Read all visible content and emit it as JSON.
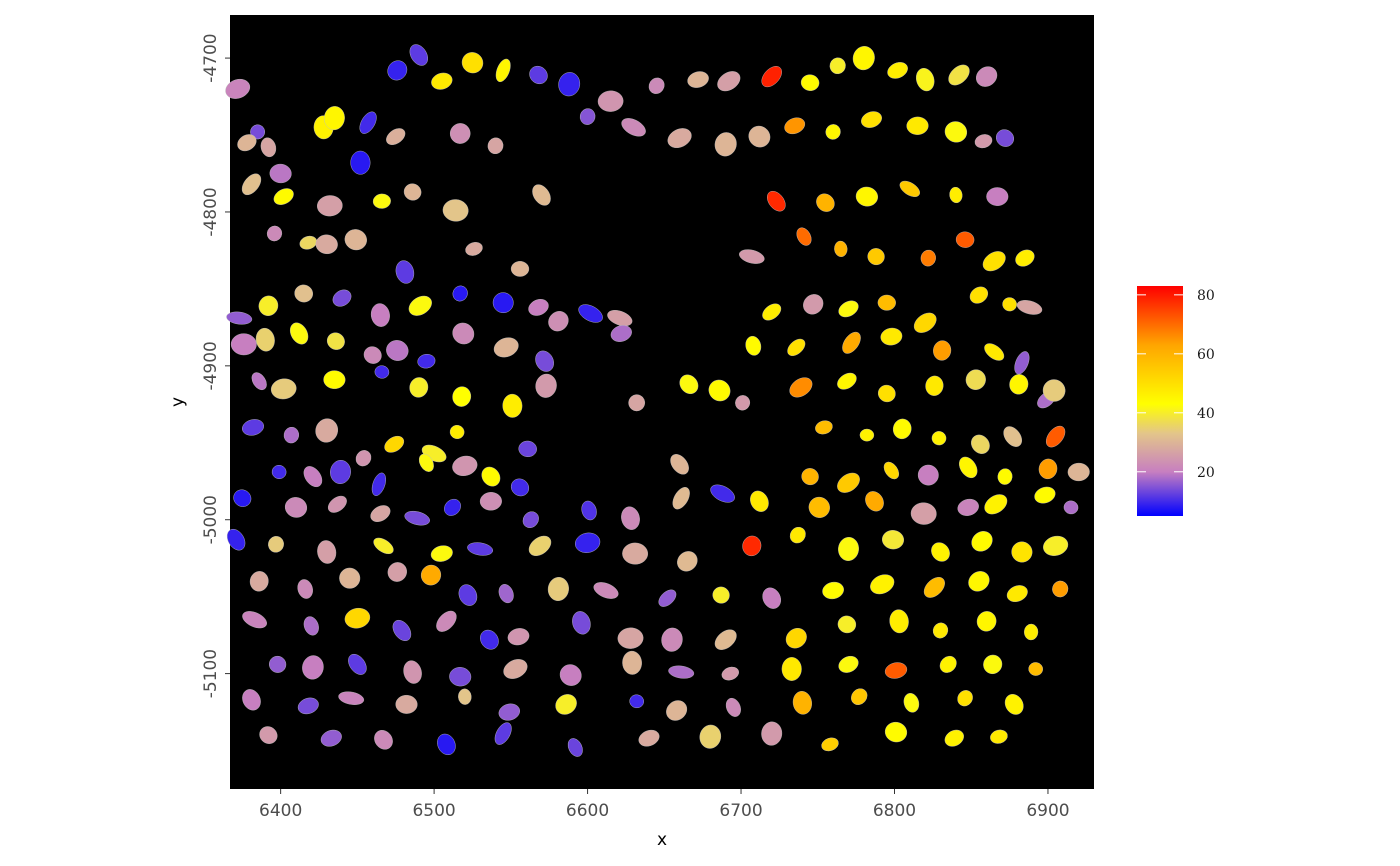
{
  "chart_data": {
    "type": "scatter",
    "title": "",
    "xlabel": "x",
    "ylabel": "y",
    "xlim": [
      6367,
      6930
    ],
    "ylim": [
      -5175,
      -4672
    ],
    "x_ticks": [
      6400,
      6500,
      6600,
      6700,
      6800,
      6900
    ],
    "y_ticks": [
      -4700,
      -4800,
      -4900,
      -5000,
      -5100
    ],
    "x_tick_labels": [
      "6400",
      "6500",
      "6600",
      "6700",
      "6800",
      "6900"
    ],
    "y_tick_labels": [
      "-4700",
      "-4800",
      "-4900",
      "-5000",
      "-5100"
    ],
    "panel_background": "#000000",
    "legend": {
      "position": "right",
      "title": "",
      "ticks": [
        20,
        40,
        60,
        80
      ],
      "tick_labels": [
        "20",
        "40",
        "60",
        "80"
      ],
      "range": [
        5,
        83
      ],
      "gradient_stops": [
        {
          "value": 5,
          "color": "#0000ff"
        },
        {
          "value": 20,
          "color": "#c77fc0"
        },
        {
          "value": 33,
          "color": "#e3c58a"
        },
        {
          "value": 43,
          "color": "#ffff00"
        },
        {
          "value": 63,
          "color": "#ffa500"
        },
        {
          "value": 83,
          "color": "#ff0000"
        }
      ]
    },
    "points": [
      [
        6372,
        -4720,
        21
      ],
      [
        6385,
        -4748,
        14
      ],
      [
        6400,
        -4775,
        19
      ],
      [
        6428,
        -4745,
        46
      ],
      [
        6452,
        -4768,
        8
      ],
      [
        6476,
        -4708,
        9
      ],
      [
        6490,
        -4698,
        12
      ],
      [
        6505,
        -4715,
        48
      ],
      [
        6525,
        -4703,
        50
      ],
      [
        6545,
        -4708,
        45
      ],
      [
        6568,
        -4711,
        12
      ],
      [
        6588,
        -4717,
        9
      ],
      [
        6615,
        -4728,
        24
      ],
      [
        6645,
        -4718,
        22
      ],
      [
        6672,
        -4714,
        30
      ],
      [
        6692,
        -4715,
        26
      ],
      [
        6720,
        -4712,
        79
      ],
      [
        6745,
        -4716,
        44
      ],
      [
        6763,
        -4705,
        40
      ],
      [
        6780,
        -4700,
        45
      ],
      [
        6802,
        -4708,
        47
      ],
      [
        6820,
        -4714,
        41
      ],
      [
        6842,
        -4711,
        38
      ],
      [
        6860,
        -4712,
        22
      ],
      [
        6378,
        -4755,
        30
      ],
      [
        6392,
        -4758,
        27
      ],
      [
        6435,
        -4739,
        45
      ],
      [
        6457,
        -4742,
        10
      ],
      [
        6475,
        -4751,
        29
      ],
      [
        6517,
        -4749,
        23
      ],
      [
        6540,
        -4757,
        27
      ],
      [
        6600,
        -4738,
        15
      ],
      [
        6630,
        -4745,
        22
      ],
      [
        6660,
        -4752,
        28
      ],
      [
        6690,
        -4756,
        30
      ],
      [
        6712,
        -4751,
        30
      ],
      [
        6735,
        -4744,
        65
      ],
      [
        6760,
        -4748,
        45
      ],
      [
        6785,
        -4740,
        50
      ],
      [
        6815,
        -4744,
        48
      ],
      [
        6840,
        -4748,
        42
      ],
      [
        6858,
        -4754,
        25
      ],
      [
        6872,
        -4752,
        14
      ],
      [
        6381,
        -4782,
        32
      ],
      [
        6402,
        -4790,
        44
      ],
      [
        6432,
        -4796,
        26
      ],
      [
        6466,
        -4793,
        42
      ],
      [
        6486,
        -4787,
        30
      ],
      [
        6514,
        -4799,
        33
      ],
      [
        6570,
        -4789,
        31
      ],
      [
        6723,
        -4793,
        78
      ],
      [
        6755,
        -4794,
        60
      ],
      [
        6782,
        -4790,
        45
      ],
      [
        6810,
        -4785,
        55
      ],
      [
        6840,
        -4789,
        47
      ],
      [
        6867,
        -4790,
        20
      ],
      [
        6396,
        -4814,
        22
      ],
      [
        6418,
        -4820,
        36
      ],
      [
        6430,
        -4821,
        28
      ],
      [
        6449,
        -4818,
        30
      ],
      [
        6481,
        -4839,
        12
      ],
      [
        6526,
        -4824,
        28
      ],
      [
        6556,
        -4837,
        30
      ],
      [
        6707,
        -4829,
        25
      ],
      [
        6741,
        -4816,
        70
      ],
      [
        6765,
        -4824,
        60
      ],
      [
        6788,
        -4829,
        55
      ],
      [
        6822,
        -4830,
        68
      ],
      [
        6846,
        -4818,
        72
      ],
      [
        6865,
        -4832,
        50
      ],
      [
        6885,
        -4830,
        47
      ],
      [
        6373,
        -4869,
        16
      ],
      [
        6392,
        -4861,
        40
      ],
      [
        6415,
        -4853,
        32
      ],
      [
        6440,
        -4856,
        14
      ],
      [
        6465,
        -4867,
        20
      ],
      [
        6491,
        -4861,
        42
      ],
      [
        6517,
        -4853,
        8
      ],
      [
        6545,
        -4859,
        8
      ],
      [
        6568,
        -4862,
        20
      ],
      [
        6581,
        -4871,
        23
      ],
      [
        6602,
        -4866,
        9
      ],
      [
        6621,
        -4869,
        26
      ],
      [
        6720,
        -4865,
        47
      ],
      [
        6747,
        -4860,
        25
      ],
      [
        6770,
        -4863,
        42
      ],
      [
        6795,
        -4859,
        58
      ],
      [
        6820,
        -4872,
        52
      ],
      [
        6855,
        -4854,
        50
      ],
      [
        6875,
        -4860,
        50
      ],
      [
        6888,
        -4862,
        27
      ],
      [
        6376,
        -4886,
        20
      ],
      [
        6390,
        -4883,
        35
      ],
      [
        6412,
        -4879,
        42
      ],
      [
        6436,
        -4884,
        38
      ],
      [
        6460,
        -4893,
        22
      ],
      [
        6476,
        -4890,
        19
      ],
      [
        6495,
        -4897,
        10
      ],
      [
        6519,
        -4879,
        22
      ],
      [
        6547,
        -4888,
        30
      ],
      [
        6572,
        -4897,
        14
      ],
      [
        6622,
        -4879,
        18
      ],
      [
        6708,
        -4887,
        44
      ],
      [
        6736,
        -4888,
        50
      ],
      [
        6772,
        -4885,
        62
      ],
      [
        6798,
        -4881,
        48
      ],
      [
        6831,
        -4890,
        64
      ],
      [
        6865,
        -4891,
        48
      ],
      [
        6883,
        -4898,
        16
      ],
      [
        6386,
        -4910,
        19
      ],
      [
        6402,
        -4915,
        34
      ],
      [
        6435,
        -4909,
        44
      ],
      [
        6466,
        -4904,
        10
      ],
      [
        6490,
        -4914,
        40
      ],
      [
        6518,
        -4920,
        43
      ],
      [
        6551,
        -4926,
        47
      ],
      [
        6573,
        -4913,
        25
      ],
      [
        6632,
        -4924,
        27
      ],
      [
        6666,
        -4912,
        42
      ],
      [
        6686,
        -4916,
        44
      ],
      [
        6701,
        -4924,
        25
      ],
      [
        6739,
        -4914,
        66
      ],
      [
        6769,
        -4910,
        45
      ],
      [
        6795,
        -4918,
        50
      ],
      [
        6826,
        -4913,
        48
      ],
      [
        6853,
        -4909,
        37
      ],
      [
        6881,
        -4912,
        45
      ],
      [
        6899,
        -4922,
        18
      ],
      [
        6904,
        -4916,
        34
      ],
      [
        6382,
        -4940,
        12
      ],
      [
        6407,
        -4945,
        18
      ],
      [
        6430,
        -4942,
        28
      ],
      [
        6454,
        -4960,
        24
      ],
      [
        6474,
        -4951,
        52
      ],
      [
        6500,
        -4957,
        40
      ],
      [
        6515,
        -4943,
        47
      ],
      [
        6561,
        -4954,
        13
      ],
      [
        6754,
        -4940,
        58
      ],
      [
        6782,
        -4945,
        46
      ],
      [
        6805,
        -4941,
        44
      ],
      [
        6829,
        -4947,
        46
      ],
      [
        6856,
        -4951,
        36
      ],
      [
        6877,
        -4946,
        32
      ],
      [
        6905,
        -4946,
        72
      ],
      [
        6399,
        -4969,
        10
      ],
      [
        6421,
        -4972,
        20
      ],
      [
        6439,
        -4969,
        12
      ],
      [
        6464,
        -4977,
        10
      ],
      [
        6495,
        -4963,
        42
      ],
      [
        6520,
        -4965,
        24
      ],
      [
        6537,
        -4972,
        44
      ],
      [
        6556,
        -4979,
        10
      ],
      [
        6660,
        -4964,
        30
      ],
      [
        6745,
        -4972,
        60
      ],
      [
        6770,
        -4976,
        55
      ],
      [
        6798,
        -4968,
        52
      ],
      [
        6822,
        -4971,
        20
      ],
      [
        6848,
        -4966,
        45
      ],
      [
        6872,
        -4972,
        44
      ],
      [
        6900,
        -4967,
        64
      ],
      [
        6920,
        -4969,
        30
      ],
      [
        6375,
        -4986,
        8
      ],
      [
        6410,
        -4992,
        22
      ],
      [
        6437,
        -4990,
        24
      ],
      [
        6465,
        -4996,
        27
      ],
      [
        6489,
        -4999,
        14
      ],
      [
        6512,
        -4992,
        9
      ],
      [
        6537,
        -4988,
        23
      ],
      [
        6563,
        -5000,
        14
      ],
      [
        6601,
        -4994,
        11
      ],
      [
        6628,
        -4999,
        22
      ],
      [
        6661,
        -4986,
        31
      ],
      [
        6688,
        -4983,
        10
      ],
      [
        6712,
        -4988,
        48
      ],
      [
        6751,
        -4992,
        58
      ],
      [
        6787,
        -4988,
        62
      ],
      [
        6819,
        -4996,
        26
      ],
      [
        6848,
        -4992,
        21
      ],
      [
        6866,
        -4990,
        46
      ],
      [
        6898,
        -4984,
        44
      ],
      [
        6915,
        -4992,
        18
      ],
      [
        6371,
        -5013,
        9
      ],
      [
        6397,
        -5016,
        34
      ],
      [
        6430,
        -5021,
        26
      ],
      [
        6467,
        -5017,
        40
      ],
      [
        6505,
        -5022,
        42
      ],
      [
        6530,
        -5019,
        12
      ],
      [
        6569,
        -5017,
        35
      ],
      [
        6600,
        -5015,
        9
      ],
      [
        6631,
        -5022,
        28
      ],
      [
        6665,
        -5027,
        31
      ],
      [
        6707,
        -5017,
        78
      ],
      [
        6737,
        -5010,
        48
      ],
      [
        6770,
        -5019,
        42
      ],
      [
        6799,
        -5013,
        39
      ],
      [
        6830,
        -5021,
        46
      ],
      [
        6857,
        -5014,
        44
      ],
      [
        6883,
        -5021,
        49
      ],
      [
        6905,
        -5017,
        40
      ],
      [
        6386,
        -5040,
        28
      ],
      [
        6416,
        -5045,
        22
      ],
      [
        6445,
        -5038,
        30
      ],
      [
        6476,
        -5034,
        26
      ],
      [
        6498,
        -5036,
        62
      ],
      [
        6522,
        -5049,
        12
      ],
      [
        6547,
        -5048,
        17
      ],
      [
        6581,
        -5045,
        34
      ],
      [
        6612,
        -5046,
        22
      ],
      [
        6652,
        -5051,
        16
      ],
      [
        6687,
        -5049,
        40
      ],
      [
        6720,
        -5051,
        20
      ],
      [
        6760,
        -5046,
        44
      ],
      [
        6792,
        -5042,
        46
      ],
      [
        6826,
        -5044,
        58
      ],
      [
        6855,
        -5040,
        45
      ],
      [
        6880,
        -5048,
        48
      ],
      [
        6908,
        -5045,
        64
      ],
      [
        6383,
        -5065,
        21
      ],
      [
        6420,
        -5069,
        18
      ],
      [
        6450,
        -5064,
        52
      ],
      [
        6479,
        -5072,
        13
      ],
      [
        6508,
        -5066,
        22
      ],
      [
        6536,
        -5078,
        10
      ],
      [
        6555,
        -5076,
        24
      ],
      [
        6596,
        -5067,
        14
      ],
      [
        6628,
        -5077,
        27
      ],
      [
        6655,
        -5078,
        22
      ],
      [
        6690,
        -5078,
        31
      ],
      [
        6736,
        -5077,
        52
      ],
      [
        6769,
        -5068,
        40
      ],
      [
        6803,
        -5066,
        47
      ],
      [
        6830,
        -5072,
        48
      ],
      [
        6860,
        -5066,
        45
      ],
      [
        6889,
        -5073,
        47
      ],
      [
        6398,
        -5094,
        16
      ],
      [
        6421,
        -5096,
        20
      ],
      [
        6450,
        -5094,
        12
      ],
      [
        6486,
        -5099,
        24
      ],
      [
        6517,
        -5102,
        14
      ],
      [
        6553,
        -5097,
        28
      ],
      [
        6589,
        -5101,
        20
      ],
      [
        6629,
        -5093,
        30
      ],
      [
        6661,
        -5099,
        18
      ],
      [
        6693,
        -5100,
        25
      ],
      [
        6733,
        -5097,
        48
      ],
      [
        6770,
        -5094,
        42
      ],
      [
        6801,
        -5098,
        72
      ],
      [
        6835,
        -5094,
        46
      ],
      [
        6864,
        -5094,
        42
      ],
      [
        6892,
        -5097,
        58
      ],
      [
        6381,
        -5117,
        20
      ],
      [
        6418,
        -5121,
        14
      ],
      [
        6446,
        -5116,
        21
      ],
      [
        6482,
        -5120,
        28
      ],
      [
        6520,
        -5115,
        33
      ],
      [
        6549,
        -5125,
        16
      ],
      [
        6586,
        -5120,
        40
      ],
      [
        6632,
        -5118,
        10
      ],
      [
        6658,
        -5124,
        30
      ],
      [
        6695,
        -5122,
        22
      ],
      [
        6740,
        -5119,
        60
      ],
      [
        6777,
        -5115,
        56
      ],
      [
        6811,
        -5119,
        42
      ],
      [
        6846,
        -5116,
        50
      ],
      [
        6878,
        -5120,
        46
      ],
      [
        6392,
        -5140,
        25
      ],
      [
        6433,
        -5142,
        16
      ],
      [
        6467,
        -5143,
        22
      ],
      [
        6508,
        -5146,
        8
      ],
      [
        6545,
        -5139,
        12
      ],
      [
        6592,
        -5148,
        13
      ],
      [
        6640,
        -5142,
        28
      ],
      [
        6680,
        -5141,
        35
      ],
      [
        6720,
        -5139,
        25
      ],
      [
        6758,
        -5146,
        54
      ],
      [
        6801,
        -5138,
        44
      ],
      [
        6839,
        -5142,
        46
      ],
      [
        6868,
        -5141,
        48
      ]
    ]
  }
}
